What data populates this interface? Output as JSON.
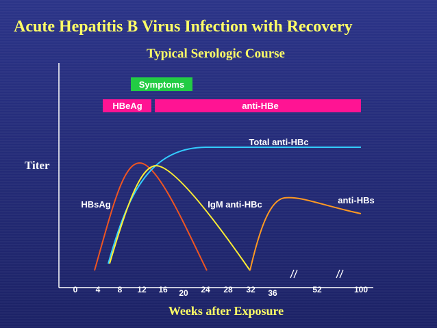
{
  "header": {
    "title": "Acute Hepatitis B Virus Infection with Recovery",
    "subtitle": "Typical Serologic Course"
  },
  "axes": {
    "y_label": "Titer",
    "x_label": "Weeks after Exposure",
    "x_ticks": [
      "0",
      "4",
      "8",
      "12",
      "16",
      "20",
      "24",
      "28",
      "32",
      "36",
      "52",
      "100"
    ]
  },
  "bars": {
    "symptoms": "Symptoms",
    "hbeag": "HBeAg",
    "anti_hbe": "anti-HBe"
  },
  "curves": {
    "total_anti_hbc": "Total anti-HBc",
    "hbsag": "HBsAg",
    "igm_anti_hbc": "IgM anti-HBc",
    "anti_hbs": "anti-HBs"
  }
}
